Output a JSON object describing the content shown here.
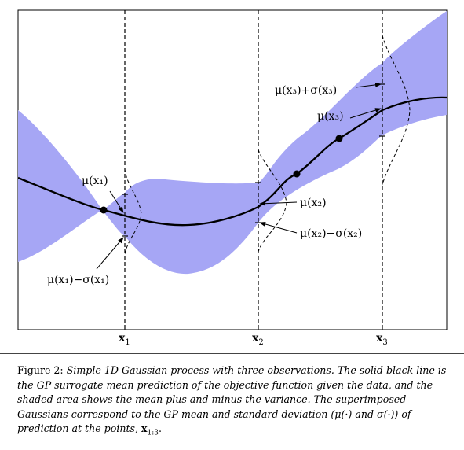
{
  "chart_data": {
    "type": "line",
    "title": "",
    "xlabel": "",
    "ylabel": "",
    "series": [
      {
        "name": "GP mean"
      },
      {
        "name": "mean plus and minus the variance"
      }
    ],
    "tick_labels": {
      "x1": {
        "main": "x",
        "sub": "1"
      },
      "x2": {
        "main": "x",
        "sub": "2"
      },
      "x3": {
        "main": "x",
        "sub": "3"
      }
    },
    "annotations": {
      "mu_x1": "μ(x₁)",
      "mu_x1_minus_sigma": "μ(x₁)−σ(x₁)",
      "mu_x2": "μ(x₂)",
      "mu_x2_minus_sigma": "μ(x₂)−σ(x₂)",
      "mu_x3": "μ(x₃)",
      "mu_x3_plus_sigma": "μ(x₃)+σ(x₃)"
    }
  },
  "caption": {
    "label": "Figure 2:",
    "text_before_symbol": "Simple 1D Gaussian process with three observations. The solid black line is the GP surrogate mean prediction of the objective function given the data, and the shaded area shows the mean plus and minus the variance. The superimposed Gaussians correspond to the GP mean and standard deviation (μ(·) and σ(·)) of prediction at the points,",
    "symbol": "x",
    "symbol_sub": "1:3",
    "end": "."
  }
}
